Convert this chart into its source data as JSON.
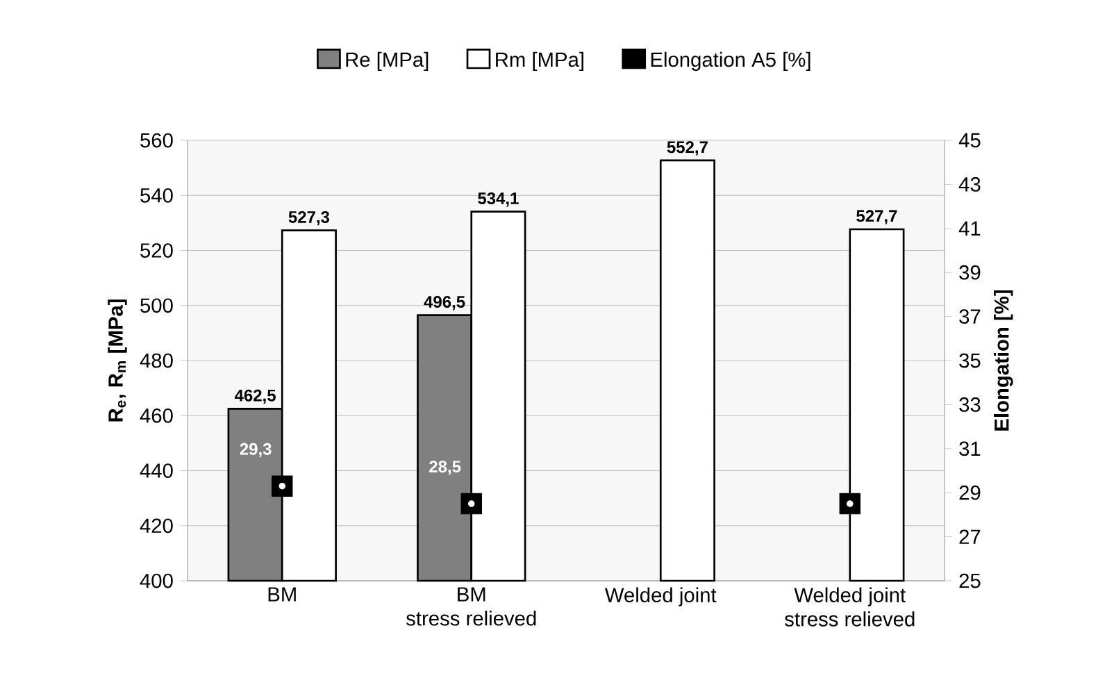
{
  "chart_data": {
    "type": "bar",
    "categories": [
      "BM",
      "BM\nstress relieved",
      "Welded joint",
      "Welded joint\nstress relieved"
    ],
    "series": [
      {
        "name": "Re [MPa]",
        "color": "#808080",
        "values": [
          462.5,
          496.5,
          null,
          null
        ],
        "value_labels": [
          "462,5",
          "496,5",
          null,
          null
        ]
      },
      {
        "name": "Rm [MPa]",
        "color": "#ffffff",
        "values": [
          527.3,
          534.1,
          552.7,
          527.7
        ],
        "value_labels": [
          "527,3",
          "534,1",
          "552,7",
          "527,7"
        ]
      },
      {
        "name": "Elongation A5 [%]",
        "type": "scatter",
        "axis": "y2",
        "marker": "square",
        "color": "#000000",
        "values": [
          29.3,
          28.5,
          null,
          28.5
        ],
        "value_labels": [
          "29,3",
          "28,5",
          null,
          null
        ]
      }
    ],
    "ylabel": "R$_{e}$, R$_{m}$ [MPa]",
    "y2label": "Elongation [%]",
    "ylim": [
      400,
      560
    ],
    "yticks": [
      400,
      420,
      440,
      460,
      480,
      500,
      520,
      540,
      560
    ],
    "y2lim": [
      25,
      45
    ],
    "y2ticks": [
      25,
      27,
      29,
      31,
      33,
      35,
      37,
      39,
      41,
      43,
      45
    ],
    "grid": "y",
    "legend": "top"
  }
}
